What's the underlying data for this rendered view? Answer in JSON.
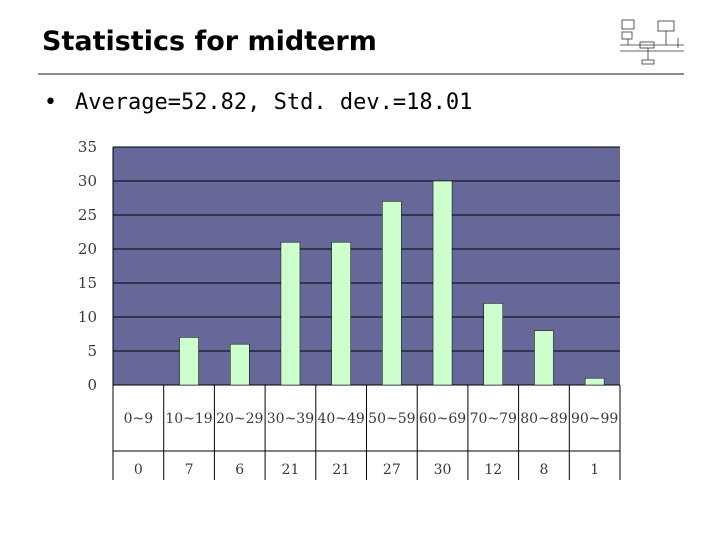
{
  "slide": {
    "title": "Statistics for midterm",
    "bullet": "Average=52.82, Std. dev.=18.01"
  },
  "colors": {
    "plot_background": "#66689a",
    "bar_fill": "#ccffcc",
    "grid": "#000000",
    "text": "#3a3a3a"
  },
  "logo": {
    "icon": "network-diagram-icon"
  },
  "chart_data": {
    "type": "bar",
    "categories": [
      "0~9",
      "10~19",
      "20~29",
      "30~39",
      "40~49",
      "50~59",
      "60~69",
      "70~79",
      "80~89",
      "90~99"
    ],
    "values": [
      0,
      7,
      6,
      21,
      21,
      27,
      30,
      12,
      8,
      1
    ],
    "value_labels": [
      "0",
      "7",
      "6",
      "21",
      "21",
      "27",
      "30",
      "12",
      "8",
      "1"
    ],
    "yticks": [
      "0",
      "5",
      "10",
      "15",
      "20",
      "25",
      "30",
      "35"
    ],
    "ylim": [
      0,
      35
    ],
    "grid": true,
    "legend": "none",
    "data_table": true
  }
}
